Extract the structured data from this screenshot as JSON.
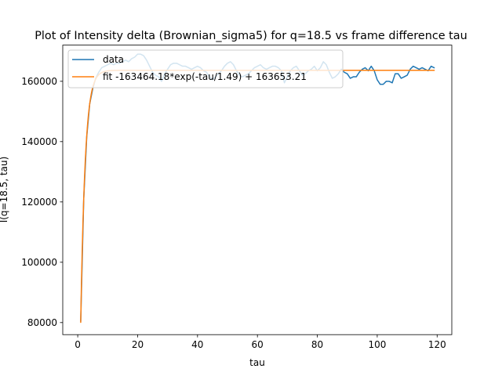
{
  "chart_data": {
    "type": "line",
    "title": "Plot of Intensity delta (Brownian_sigma5) for q=18.5 vs frame difference tau",
    "xlabel": "tau",
    "ylabel": "I(q=18.5, tau)",
    "xlim": [
      -5.0,
      124.9
    ],
    "ylim": [
      76000,
      172000
    ],
    "xticks": [
      0,
      20,
      40,
      60,
      80,
      100,
      120
    ],
    "yticks": [
      80000,
      100000,
      120000,
      140000,
      160000
    ],
    "grid": false,
    "legend_position": "top-left",
    "series": [
      {
        "name": "data",
        "color": "#1f77b4",
        "x": [
          1,
          2,
          3,
          4,
          5,
          6,
          7,
          8,
          9,
          10,
          11,
          12,
          13,
          14,
          15,
          16,
          17,
          18,
          19,
          20,
          21,
          22,
          23,
          24,
          25,
          26,
          27,
          28,
          29,
          30,
          31,
          32,
          33,
          34,
          35,
          36,
          37,
          38,
          39,
          40,
          41,
          42,
          43,
          44,
          45,
          46,
          47,
          48,
          49,
          50,
          51,
          52,
          53,
          54,
          55,
          56,
          57,
          58,
          59,
          60,
          61,
          62,
          63,
          64,
          65,
          66,
          67,
          68,
          69,
          70,
          71,
          72,
          73,
          74,
          75,
          76,
          77,
          78,
          79,
          80,
          81,
          82,
          83,
          84,
          85,
          86,
          87,
          88,
          89,
          90,
          91,
          92,
          93,
          94,
          95,
          96,
          97,
          98,
          99,
          100,
          101,
          102,
          103,
          104,
          105,
          106,
          107,
          108,
          109,
          110,
          111,
          112,
          113,
          114,
          115,
          116,
          117,
          118,
          119
        ],
        "y": [
          80500,
          121000,
          141500,
          152500,
          157500,
          161000,
          163000,
          164500,
          165000,
          165500,
          166000,
          165500,
          166000,
          166000,
          166500,
          167000,
          166500,
          167500,
          168000,
          169000,
          169000,
          168500,
          167000,
          165000,
          163000,
          162000,
          161500,
          160000,
          162500,
          164000,
          165500,
          166000,
          166000,
          165500,
          165000,
          165000,
          164500,
          164000,
          164500,
          165000,
          164500,
          163500,
          163000,
          161500,
          160500,
          161500,
          162500,
          163500,
          165000,
          166000,
          166500,
          165500,
          163500,
          162000,
          161500,
          162000,
          162500,
          163500,
          164500,
          165000,
          165500,
          164500,
          164000,
          164500,
          165000,
          165000,
          164500,
          163500,
          159500,
          161500,
          163500,
          164500,
          165000,
          163500,
          162000,
          162500,
          163500,
          164000,
          165000,
          163500,
          164500,
          166500,
          165500,
          163000,
          161000,
          161500,
          162500,
          164000,
          163000,
          162500,
          161000,
          161500,
          161500,
          163000,
          164000,
          164500,
          163500,
          165000,
          163500,
          160500,
          159000,
          159000,
          160000,
          160000,
          159500,
          162500,
          162500,
          161000,
          161500,
          162000,
          164000,
          165000,
          164500,
          164000,
          164500,
          164000,
          163500,
          165000,
          164500
        ]
      },
      {
        "name": "fit -163464.18*exp(-tau/1.49) + 163653.21",
        "color": "#ff7f0e",
        "model": {
          "a": -163464.18,
          "tau0": 1.49,
          "c": 163653.21
        },
        "x_range": [
          1,
          119
        ]
      }
    ]
  }
}
